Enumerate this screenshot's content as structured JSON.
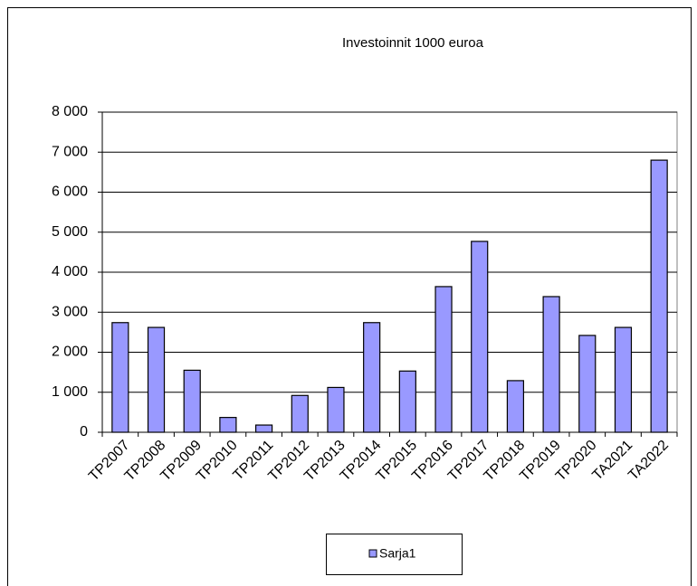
{
  "chart_data": {
    "type": "bar",
    "title": "Investoinnit  1000 euroa",
    "categories": [
      "TP2007",
      "TP2008",
      "TP2009",
      "TP2010",
      "TP2011",
      "TP2012",
      "TP2013",
      "TP2014",
      "TP2015",
      "TP2016",
      "TP2017",
      "TP2018",
      "TP2019",
      "TP2020",
      "TA2021",
      "TA2022"
    ],
    "series": [
      {
        "name": "Sarja1",
        "color": "#9999ff",
        "values": [
          2740,
          2620,
          1550,
          370,
          180,
          920,
          1120,
          2740,
          1530,
          3640,
          4770,
          1290,
          3390,
          2420,
          2620,
          6800
        ]
      }
    ],
    "ylim": [
      0,
      8000
    ],
    "yticks": [
      0,
      {
        "value": 1000,
        "label": "1 000"
      },
      {
        "value": 2000,
        "label": "2 000"
      },
      {
        "value": 3000,
        "label": "3 000"
      },
      {
        "value": 4000,
        "label": "4 000"
      },
      {
        "value": 5000,
        "label": "5 000"
      },
      {
        "value": 6000,
        "label": "6 000"
      },
      {
        "value": 7000,
        "label": "7 000"
      },
      {
        "value": 8000,
        "label": "8 000"
      }
    ],
    "grid": true,
    "legend": "bottom"
  }
}
